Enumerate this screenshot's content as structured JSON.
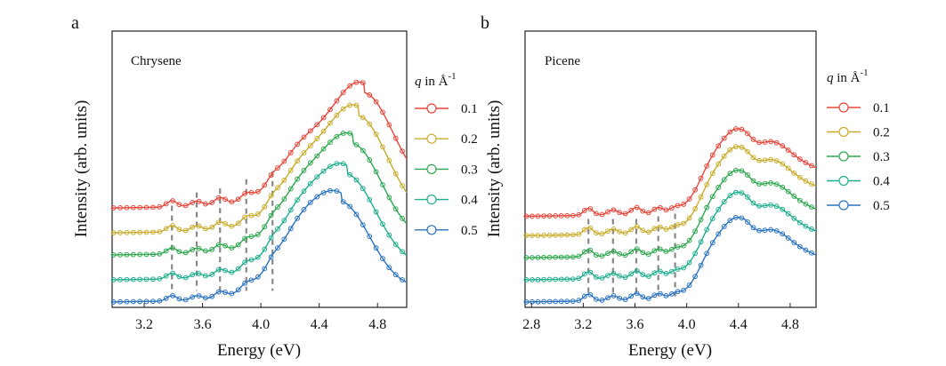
{
  "chart_data": [
    {
      "type": "line",
      "panel_letter": "a",
      "annotation": "Chrysene",
      "xlabel": "Energy  (eV)",
      "ylabel": "Intensity  (arb. units)",
      "xlim": [
        2.98,
        5.0
      ],
      "ylim": [
        0,
        1
      ],
      "xticks": [
        3.2,
        3.6,
        4.0,
        4.4,
        4.8
      ],
      "xtick_labels": [
        "3.2",
        "3.6",
        "4.0",
        "4.4",
        "4.8"
      ],
      "legend_title": {
        "var": "q",
        "rest": " in Å",
        "sup": "-1"
      },
      "dashed_markers_eV": [
        3.39,
        3.56,
        3.72,
        3.9,
        4.08
      ],
      "series": [
        {
          "name": "0.1",
          "color": "#e8463a",
          "offset": 0.36,
          "amplitude": 0.61
        },
        {
          "name": "0.2",
          "color": "#c9ac2c",
          "offset": 0.27,
          "amplitude": 0.62
        },
        {
          "name": "0.3",
          "color": "#2fa84f",
          "offset": 0.19,
          "amplitude": 0.59
        },
        {
          "name": "0.4",
          "color": "#1fae8e",
          "offset": 0.1,
          "amplitude": 0.56
        },
        {
          "name": "0.5",
          "color": "#2b73c0",
          "offset": 0.02,
          "amplitude": 0.53
        }
      ]
    },
    {
      "type": "line",
      "panel_letter": "b",
      "annotation": "Picene",
      "xlabel": "Energy  (eV)",
      "ylabel": "Intensity  (arb. units)",
      "xlim": [
        2.75,
        5.0
      ],
      "ylim": [
        0,
        1
      ],
      "xticks": [
        2.8,
        3.2,
        3.6,
        4.0,
        4.4,
        4.8
      ],
      "xtick_labels": [
        "2.8",
        "3.2",
        "3.6",
        "4.0",
        "4.4",
        "4.8"
      ],
      "legend_title": {
        "var": "q",
        "rest": " in Å",
        "sup": "-1"
      },
      "dashed_markers_eV": [
        3.24,
        3.43,
        3.61,
        3.78,
        3.91
      ],
      "series": [
        {
          "name": "0.1",
          "color": "#e8463a",
          "offset": 0.33,
          "amplitude": 0.59
        },
        {
          "name": "0.2",
          "color": "#c9ac2c",
          "offset": 0.26,
          "amplitude": 0.6
        },
        {
          "name": "0.3",
          "color": "#2fa84f",
          "offset": 0.18,
          "amplitude": 0.59
        },
        {
          "name": "0.4",
          "color": "#1fae8e",
          "offset": 0.1,
          "amplitude": 0.59
        },
        {
          "name": "0.5",
          "color": "#2b73c0",
          "offset": 0.02,
          "amplitude": 0.57
        }
      ]
    }
  ]
}
